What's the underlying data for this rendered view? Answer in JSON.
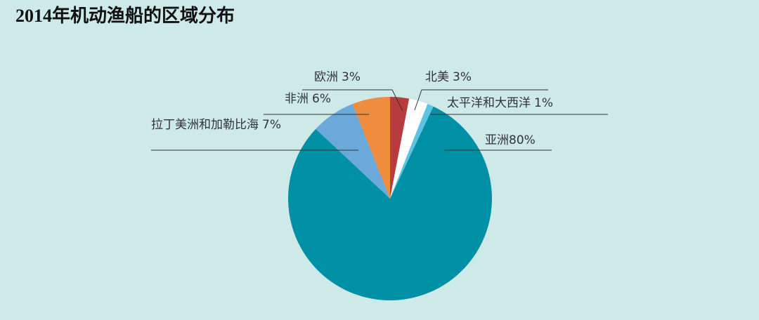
{
  "chart_data": {
    "type": "pie",
    "title": "2014年机动渔船的区域分布",
    "categories": [
      "欧洲",
      "北美",
      "太平洋和大西洋",
      "亚洲",
      "拉丁美洲和加勒比海",
      "非洲"
    ],
    "values": [
      3,
      3,
      1,
      80,
      7,
      6
    ],
    "value_labels": [
      "3%",
      "3%",
      "1%",
      "80%",
      "7%",
      "6%"
    ],
    "colors": [
      "#b83b3e",
      "#ffffff",
      "#5cc3e0",
      "#0090a5",
      "#6aa9da",
      "#ef8c3d"
    ]
  }
}
